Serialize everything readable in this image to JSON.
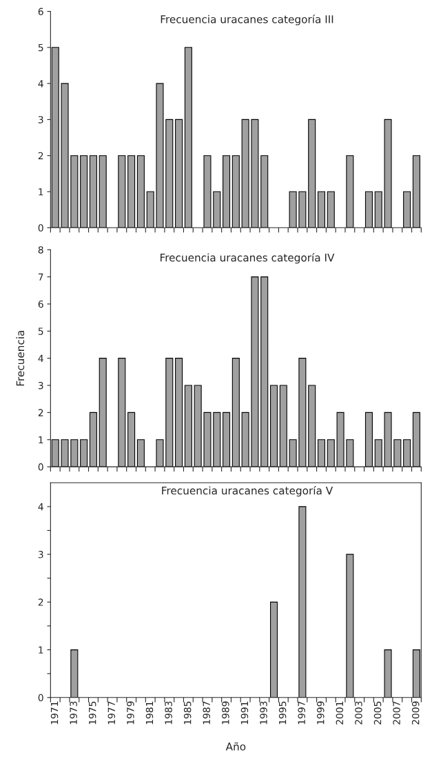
{
  "chart_data": [
    {
      "type": "bar",
      "title": "Frecuencia uracanes categoría III",
      "categories": [
        "1971",
        null,
        "1973",
        null,
        "1975",
        null,
        "1977",
        null,
        "1979",
        null,
        "1981",
        null,
        "1983",
        null,
        "1985",
        null,
        "1987",
        null,
        "1989",
        null,
        "1991",
        null,
        "1993",
        null,
        "1995",
        null,
        "1997",
        null,
        "1999",
        null,
        "2001",
        null,
        "2003",
        null,
        "2005",
        null,
        "2007",
        null,
        "2009"
      ],
      "values": [
        5,
        4,
        2,
        2,
        2,
        2,
        0,
        2,
        2,
        2,
        1,
        4,
        3,
        3,
        5,
        0,
        2,
        1,
        2,
        2,
        3,
        3,
        2,
        0,
        0,
        1,
        1,
        3,
        1,
        1,
        0,
        2,
        0,
        1,
        1,
        3,
        0,
        1,
        2
      ],
      "color": "#a0a0a0",
      "ylim": [
        0,
        6
      ],
      "yticks": [
        0,
        1,
        2,
        3,
        4,
        5,
        6
      ],
      "tick_labels": "y",
      "grid": false,
      "legend": false
    },
    {
      "type": "bar",
      "title": "Frecuencia uracanes categoría IV",
      "ylabel": "Frecuencia",
      "categories": [
        "1971",
        null,
        "1973",
        null,
        "1975",
        null,
        "1977",
        null,
        "1979",
        null,
        "1981",
        null,
        "1983",
        null,
        "1985",
        null,
        "1987",
        null,
        "1989",
        null,
        "1991",
        null,
        "1993",
        null,
        "1995",
        null,
        "1997",
        null,
        "1999",
        null,
        "2001",
        null,
        "2003",
        null,
        "2005",
        null,
        "2007",
        null,
        "2009"
      ],
      "values": [
        1,
        1,
        1,
        1,
        2,
        4,
        0,
        4,
        2,
        1,
        0,
        1,
        4,
        4,
        3,
        3,
        2,
        2,
        2,
        4,
        2,
        7,
        7,
        3,
        3,
        1,
        4,
        3,
        1,
        1,
        2,
        1,
        0,
        2,
        1,
        2,
        1,
        1,
        2
      ],
      "color": "#a0a0a0",
      "ylim": [
        0,
        8
      ],
      "yticks": [
        0,
        1,
        2,
        3,
        4,
        5,
        6,
        7,
        8
      ],
      "tick_labels": "y",
      "grid": false,
      "legend": false
    },
    {
      "type": "bar",
      "title": "Frecuencia uracanes categoría V",
      "xlabel": "Año",
      "categories": [
        "1971",
        null,
        "1973",
        null,
        "1975",
        null,
        "1977",
        null,
        "1979",
        null,
        "1981",
        null,
        "1983",
        null,
        "1985",
        null,
        "1987",
        null,
        "1989",
        null,
        "1991",
        null,
        "1993",
        null,
        "1995",
        null,
        "1997",
        null,
        "1999",
        null,
        "2001",
        null,
        "2003",
        null,
        "2005",
        null,
        "2007",
        null,
        "2009"
      ],
      "values": [
        0,
        0,
        1,
        0,
        0,
        0,
        0,
        0,
        0,
        0,
        0,
        0,
        0,
        0,
        0,
        0,
        0,
        0,
        0,
        0,
        0,
        0,
        0,
        2,
        0,
        0,
        4,
        0,
        0,
        0,
        0,
        3,
        0,
        0,
        0,
        1,
        0,
        0,
        1
      ],
      "color": "#a0a0a0",
      "ylim": [
        0,
        4.5
      ],
      "yticks": [
        0,
        {
          "value": 0.5,
          "label": null
        },
        1,
        {
          "value": 1.5,
          "label": null
        },
        2,
        {
          "value": 2.5,
          "label": null
        },
        3,
        {
          "value": 3.5,
          "label": null
        },
        4
      ],
      "grid": false,
      "legend": false
    }
  ]
}
